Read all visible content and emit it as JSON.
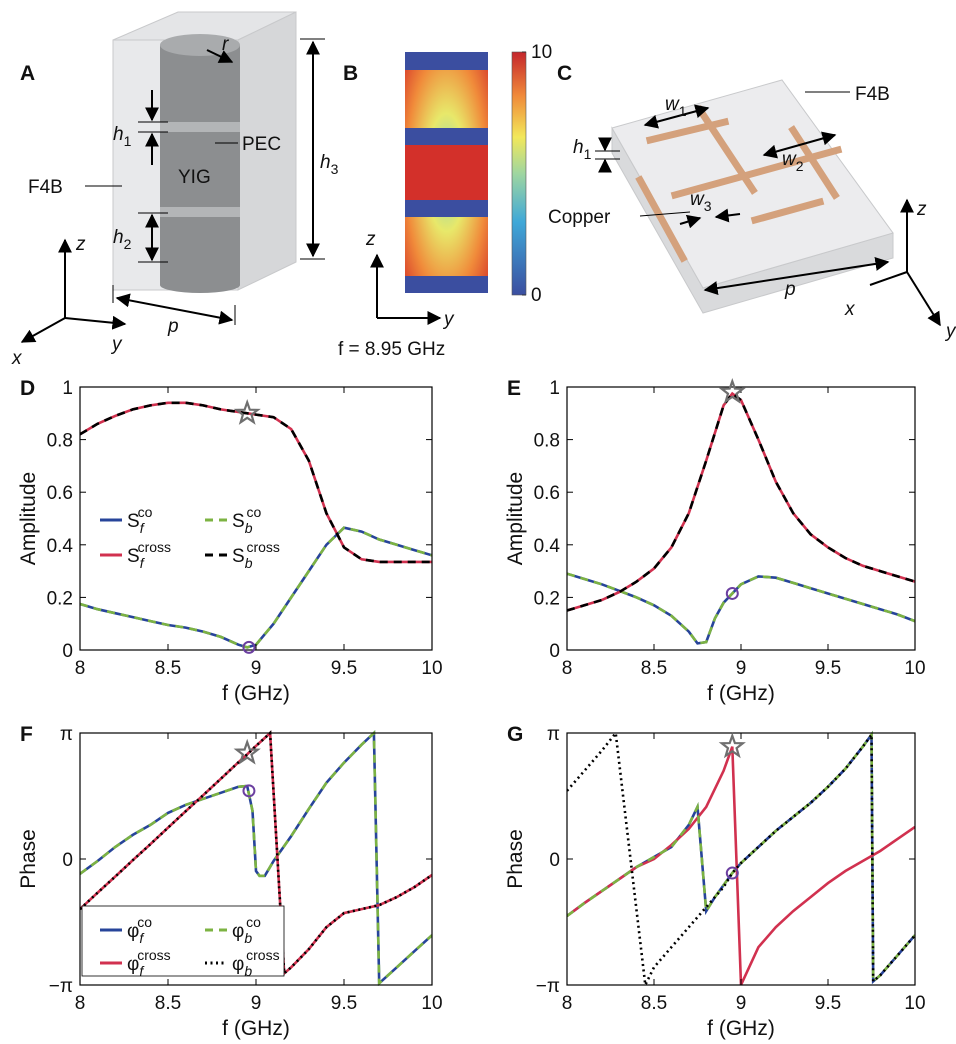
{
  "diagrams": {
    "A": {
      "label": "A",
      "r": "r",
      "h1": {
        "main": "h",
        "sub": "1"
      },
      "pec": "PEC",
      "yig": "YIG",
      "f4b": "F4B",
      "h2": {
        "main": "h",
        "sub": "2"
      },
      "h3": {
        "main": "h",
        "sub": "3"
      },
      "p": "p",
      "z": "z",
      "y": "y",
      "x": "x"
    },
    "B": {
      "label": "B",
      "colorbar": {
        "lim": [
          0,
          10
        ],
        "ticks": [
          0,
          10
        ]
      },
      "z": "z",
      "y": "y",
      "caption": "f = 8.95 GHz"
    },
    "C": {
      "label": "C",
      "f4b": "F4B",
      "w1": {
        "main": "w",
        "sub": "1"
      },
      "h1": {
        "main": "h",
        "sub": "1"
      },
      "w2": {
        "main": "w",
        "sub": "2"
      },
      "w3": {
        "main": "w",
        "sub": "3"
      },
      "copper": "Copper",
      "z": "z",
      "p": "p",
      "x": "x",
      "y": "y"
    }
  },
  "chart_data": [
    {
      "type": "line",
      "label": "D",
      "xlabel": "f (GHz)",
      "ylabel": "Amplitude",
      "xlim": [
        8,
        10
      ],
      "xticks": [
        8,
        8.5,
        9,
        9.5,
        10
      ],
      "ylim": [
        0,
        1
      ],
      "yticks": [
        0,
        0.2,
        0.4,
        0.6,
        0.8,
        1
      ],
      "legend": "center-left",
      "series": [
        {
          "name": "S",
          "sub": "f",
          "sup": "co",
          "color": "#27449a",
          "style": "solid",
          "x": [
            8,
            8.1,
            8.2,
            8.3,
            8.4,
            8.5,
            8.6,
            8.7,
            8.8,
            8.9,
            8.95,
            9,
            9.1,
            9.2,
            9.3,
            9.4,
            9.5,
            9.6,
            9.7,
            9.8,
            9.9,
            10
          ],
          "values": [
            0.175,
            0.155,
            0.14,
            0.125,
            0.11,
            0.095,
            0.085,
            0.07,
            0.05,
            0.02,
            0.01,
            0.02,
            0.1,
            0.2,
            0.3,
            0.4,
            0.465,
            0.45,
            0.42,
            0.4,
            0.38,
            0.36
          ]
        },
        {
          "name": "S",
          "sub": "b",
          "sup": "co",
          "color": "#7cb342",
          "style": "dashed",
          "x": [
            8,
            8.1,
            8.2,
            8.3,
            8.4,
            8.5,
            8.6,
            8.7,
            8.8,
            8.9,
            8.95,
            9,
            9.1,
            9.2,
            9.3,
            9.4,
            9.5,
            9.6,
            9.7,
            9.8,
            9.9,
            10
          ],
          "values": [
            0.175,
            0.155,
            0.14,
            0.125,
            0.11,
            0.095,
            0.085,
            0.07,
            0.05,
            0.02,
            0.01,
            0.02,
            0.1,
            0.2,
            0.3,
            0.4,
            0.465,
            0.45,
            0.42,
            0.4,
            0.38,
            0.36
          ]
        },
        {
          "name": "S",
          "sub": "f",
          "sup": "cross",
          "color": "#d1314f",
          "style": "solid",
          "x": [
            8,
            8.1,
            8.2,
            8.3,
            8.4,
            8.5,
            8.6,
            8.7,
            8.8,
            8.9,
            8.95,
            9,
            9.1,
            9.2,
            9.3,
            9.4,
            9.5,
            9.6,
            9.7,
            9.8,
            9.9,
            10
          ],
          "values": [
            0.82,
            0.86,
            0.89,
            0.915,
            0.93,
            0.94,
            0.94,
            0.93,
            0.915,
            0.905,
            0.9,
            0.895,
            0.885,
            0.84,
            0.72,
            0.52,
            0.39,
            0.345,
            0.335,
            0.335,
            0.335,
            0.335
          ]
        },
        {
          "name": "S",
          "sub": "b",
          "sup": "cross",
          "color": "#000000",
          "style": "dashed",
          "x": [
            8,
            8.1,
            8.2,
            8.3,
            8.4,
            8.5,
            8.6,
            8.7,
            8.8,
            8.9,
            8.95,
            9,
            9.1,
            9.2,
            9.3,
            9.4,
            9.5,
            9.6,
            9.7,
            9.8,
            9.9,
            10
          ],
          "values": [
            0.82,
            0.86,
            0.89,
            0.915,
            0.93,
            0.94,
            0.94,
            0.93,
            0.915,
            0.905,
            0.9,
            0.895,
            0.885,
            0.84,
            0.72,
            0.52,
            0.39,
            0.345,
            0.335,
            0.335,
            0.335,
            0.335
          ]
        }
      ],
      "markers": [
        {
          "shape": "star",
          "x": 8.95,
          "y": 0.9
        },
        {
          "shape": "circle",
          "x": 8.96,
          "y": 0.01
        }
      ]
    },
    {
      "type": "line",
      "label": "E",
      "xlabel": "f (GHz)",
      "ylabel": "Amplitude",
      "xlim": [
        8,
        10
      ],
      "xticks": [
        8,
        8.5,
        9,
        9.5,
        10
      ],
      "ylim": [
        0,
        1
      ],
      "yticks": [
        0,
        0.2,
        0.4,
        0.6,
        0.8,
        1
      ],
      "series": [
        {
          "color": "#27449a",
          "style": "solid",
          "x": [
            8,
            8.1,
            8.2,
            8.3,
            8.4,
            8.5,
            8.6,
            8.7,
            8.75,
            8.8,
            8.85,
            8.9,
            8.95,
            9,
            9.1,
            9.2,
            9.3,
            9.4,
            9.5,
            9.6,
            9.7,
            9.8,
            9.9,
            10
          ],
          "values": [
            0.29,
            0.27,
            0.25,
            0.225,
            0.2,
            0.17,
            0.13,
            0.07,
            0.025,
            0.03,
            0.12,
            0.18,
            0.215,
            0.25,
            0.28,
            0.275,
            0.255,
            0.235,
            0.215,
            0.195,
            0.175,
            0.155,
            0.135,
            0.11
          ]
        },
        {
          "color": "#7cb342",
          "style": "dashed",
          "x": [
            8,
            8.1,
            8.2,
            8.3,
            8.4,
            8.5,
            8.6,
            8.7,
            8.75,
            8.8,
            8.85,
            8.9,
            8.95,
            9,
            9.1,
            9.2,
            9.3,
            9.4,
            9.5,
            9.6,
            9.7,
            9.8,
            9.9,
            10
          ],
          "values": [
            0.29,
            0.27,
            0.25,
            0.225,
            0.2,
            0.17,
            0.13,
            0.07,
            0.025,
            0.03,
            0.12,
            0.18,
            0.215,
            0.25,
            0.28,
            0.275,
            0.255,
            0.235,
            0.215,
            0.195,
            0.175,
            0.155,
            0.135,
            0.11
          ]
        },
        {
          "color": "#d1314f",
          "style": "solid",
          "x": [
            8,
            8.1,
            8.2,
            8.3,
            8.4,
            8.5,
            8.6,
            8.7,
            8.8,
            8.9,
            8.95,
            9,
            9.1,
            9.2,
            9.3,
            9.4,
            9.5,
            9.6,
            9.7,
            9.8,
            9.9,
            10
          ],
          "values": [
            0.15,
            0.17,
            0.19,
            0.22,
            0.26,
            0.31,
            0.39,
            0.52,
            0.72,
            0.93,
            0.975,
            0.95,
            0.8,
            0.64,
            0.52,
            0.44,
            0.39,
            0.35,
            0.32,
            0.3,
            0.28,
            0.26
          ]
        },
        {
          "color": "#000000",
          "style": "dashed",
          "x": [
            8,
            8.1,
            8.2,
            8.3,
            8.4,
            8.5,
            8.6,
            8.7,
            8.8,
            8.9,
            8.95,
            9,
            9.1,
            9.2,
            9.3,
            9.4,
            9.5,
            9.6,
            9.7,
            9.8,
            9.9,
            10
          ],
          "values": [
            0.15,
            0.17,
            0.19,
            0.22,
            0.26,
            0.31,
            0.39,
            0.52,
            0.72,
            0.93,
            0.975,
            0.95,
            0.8,
            0.64,
            0.52,
            0.44,
            0.39,
            0.35,
            0.32,
            0.3,
            0.28,
            0.26
          ]
        }
      ],
      "markers": [
        {
          "shape": "star",
          "x": 8.95,
          "y": 0.98
        },
        {
          "shape": "circle",
          "x": 8.95,
          "y": 0.215
        }
      ]
    },
    {
      "type": "line",
      "label": "F",
      "xlabel": "f (GHz)",
      "ylabel": "Phase",
      "xlim": [
        8,
        10
      ],
      "xticks": [
        8,
        8.5,
        9,
        9.5,
        10
      ],
      "ylim": [
        -3.1416,
        3.1416
      ],
      "yticks": [
        {
          "value": -3.1416,
          "label": "−π"
        },
        0,
        {
          "value": 3.1416,
          "label": "π"
        }
      ],
      "legend": "bottom-left",
      "series": [
        {
          "name": "φ",
          "sub": "f",
          "sup": "co",
          "color": "#27449a",
          "style": "solid",
          "x": [
            8,
            8.1,
            8.2,
            8.3,
            8.4,
            8.5,
            8.6,
            8.7,
            8.8,
            8.9,
            8.95,
            8.98,
            9,
            9.02,
            9.05,
            9.1,
            9.2,
            9.3,
            9.4,
            9.5,
            9.6,
            9.67,
            9.7,
            9.8,
            9.9,
            10
          ],
          "values": [
            -0.37,
            -0.05,
            0.3,
            0.6,
            0.85,
            1.15,
            1.35,
            1.5,
            1.65,
            1.8,
            1.82,
            1.2,
            -0.3,
            -0.42,
            -0.42,
            -0.05,
            0.57,
            1.25,
            1.9,
            2.4,
            2.85,
            3.14,
            -3.1,
            -2.7,
            -2.3,
            -1.9
          ]
        },
        {
          "name": "φ",
          "sub": "b",
          "sup": "co",
          "color": "#7cb342",
          "style": "dashed",
          "x": [
            8,
            8.1,
            8.2,
            8.3,
            8.4,
            8.5,
            8.6,
            8.7,
            8.8,
            8.9,
            8.95,
            8.98,
            9,
            9.02,
            9.05,
            9.1,
            9.2,
            9.3,
            9.4,
            9.5,
            9.6,
            9.67,
            9.7,
            9.8,
            9.9,
            10
          ],
          "values": [
            -0.37,
            -0.05,
            0.3,
            0.6,
            0.85,
            1.15,
            1.35,
            1.5,
            1.65,
            1.8,
            1.82,
            1.2,
            -0.3,
            -0.42,
            -0.42,
            -0.05,
            0.57,
            1.25,
            1.9,
            2.4,
            2.85,
            3.14,
            -3.1,
            -2.7,
            -2.3,
            -1.9
          ]
        },
        {
          "name": "φ",
          "sub": "f",
          "sup": "cross",
          "color": "#d1314f",
          "style": "solid",
          "x": [
            8,
            8.1,
            8.2,
            8.3,
            8.4,
            8.5,
            8.6,
            8.7,
            8.8,
            8.9,
            8.95,
            9,
            9.08,
            9.16,
            9.2,
            9.3,
            9.4,
            9.5,
            9.6,
            9.7,
            9.8,
            9.9,
            10
          ],
          "values": [
            -1.25,
            -0.84,
            -0.44,
            -0.03,
            0.37,
            0.78,
            1.19,
            1.59,
            2,
            2.41,
            2.61,
            2.82,
            3.14,
            -2.85,
            -2.7,
            -2.25,
            -1.7,
            -1.35,
            -1.25,
            -1.15,
            -0.95,
            -0.7,
            -0.4
          ]
        },
        {
          "name": "φ",
          "sub": "b",
          "sup": "cross",
          "color": "#000000",
          "style": "dotted",
          "x": [
            8,
            8.1,
            8.2,
            8.3,
            8.4,
            8.5,
            8.6,
            8.7,
            8.8,
            8.9,
            8.95,
            9,
            9.08,
            9.16,
            9.2,
            9.3,
            9.4,
            9.5,
            9.6,
            9.7,
            9.8,
            9.9,
            10
          ],
          "values": [
            -1.25,
            -0.84,
            -0.44,
            -0.03,
            0.37,
            0.78,
            1.19,
            1.59,
            2,
            2.41,
            2.61,
            2.82,
            3.14,
            -2.85,
            -2.7,
            -2.25,
            -1.7,
            -1.35,
            -1.25,
            -1.15,
            -0.95,
            -0.7,
            -0.4
          ]
        }
      ],
      "markers": [
        {
          "shape": "star",
          "x": 8.95,
          "y": 2.64
        },
        {
          "shape": "circle",
          "x": 8.96,
          "y": 1.7
        }
      ]
    },
    {
      "type": "line",
      "label": "G",
      "xlabel": "f (GHz)",
      "ylabel": "Phase",
      "xlim": [
        8,
        10
      ],
      "xticks": [
        8,
        8.5,
        9,
        9.5,
        10
      ],
      "ylim": [
        -3.1416,
        3.1416
      ],
      "yticks": [
        {
          "value": -3.1416,
          "label": "−π"
        },
        0,
        {
          "value": 3.1416,
          "label": "π"
        }
      ],
      "series": [
        {
          "color": "#27449a",
          "style": "solid",
          "x": [
            8,
            8.1,
            8.2,
            8.3,
            8.4,
            8.5,
            8.6,
            8.7,
            8.75,
            8.8,
            8.85,
            8.9,
            8.95,
            9,
            9.1,
            9.2,
            9.3,
            9.4,
            9.5,
            9.6,
            9.7,
            9.75,
            9.76,
            9.8,
            9.9,
            10
          ],
          "values": [
            -1.42,
            -1.1,
            -0.8,
            -0.5,
            -0.2,
            0.05,
            0.3,
            0.85,
            1.3,
            -1.3,
            -0.95,
            -0.65,
            -0.35,
            -0.1,
            0.3,
            0.7,
            1.05,
            1.4,
            1.8,
            2.25,
            2.8,
            3.1,
            -3.05,
            -2.9,
            -2.4,
            -1.9
          ]
        },
        {
          "color": "#d1314f",
          "style": "solid",
          "x": [
            8,
            8.1,
            8.2,
            8.3,
            8.4,
            8.5,
            8.6,
            8.7,
            8.8,
            8.9,
            8.95,
            9,
            9.1,
            9.2,
            9.3,
            9.4,
            9.5,
            9.6,
            9.7,
            9.8,
            9.9,
            10
          ],
          "values": [
            -1.42,
            -1.1,
            -0.8,
            -0.5,
            -0.2,
            0,
            0.35,
            0.75,
            1.3,
            2.2,
            2.8,
            -3.14,
            -2.2,
            -1.7,
            -1.3,
            -0.95,
            -0.6,
            -0.3,
            -0.05,
            0.2,
            0.5,
            0.8
          ]
        },
        {
          "color": "#7cb342",
          "style": "dashed",
          "x": [
            8,
            8.1,
            8.2,
            8.3,
            8.4,
            8.5,
            8.6,
            8.7,
            8.75,
            8.8,
            8.85,
            8.9,
            8.95,
            9,
            9.1,
            9.2,
            9.3,
            9.4,
            9.5,
            9.6,
            9.7,
            9.75,
            9.76,
            9.8,
            9.9,
            10
          ],
          "values": [
            -1.42,
            -1.1,
            -0.8,
            -0.5,
            -0.2,
            0.05,
            0.3,
            0.85,
            1.3,
            -1.3,
            -0.95,
            -0.65,
            -0.35,
            -0.1,
            0.3,
            0.7,
            1.05,
            1.4,
            1.8,
            2.25,
            2.8,
            3.1,
            -3.05,
            -2.9,
            -2.4,
            -1.9
          ]
        },
        {
          "color": "#000000",
          "style": "dotted",
          "x": [
            8,
            8.1,
            8.2,
            8.28,
            8.45,
            8.5,
            8.6,
            8.7,
            8.8,
            8.9,
            8.95,
            9,
            9.1,
            9.2,
            9.3,
            9.4,
            9.5,
            9.6,
            9.7,
            9.75,
            9.76,
            9.8,
            9.9,
            10
          ],
          "values": [
            1.7,
            2.2,
            2.7,
            3.14,
            -3.14,
            -2.7,
            -2.2,
            -1.7,
            -1.2,
            -0.7,
            -0.35,
            -0.1,
            0.3,
            0.7,
            1.05,
            1.4,
            1.8,
            2.25,
            2.8,
            3.1,
            -3.05,
            -2.9,
            -2.4,
            -1.9
          ]
        }
      ],
      "markers": [
        {
          "shape": "star",
          "x": 8.95,
          "y": 2.8
        },
        {
          "shape": "circle",
          "x": 8.95,
          "y": -0.35
        }
      ]
    }
  ]
}
